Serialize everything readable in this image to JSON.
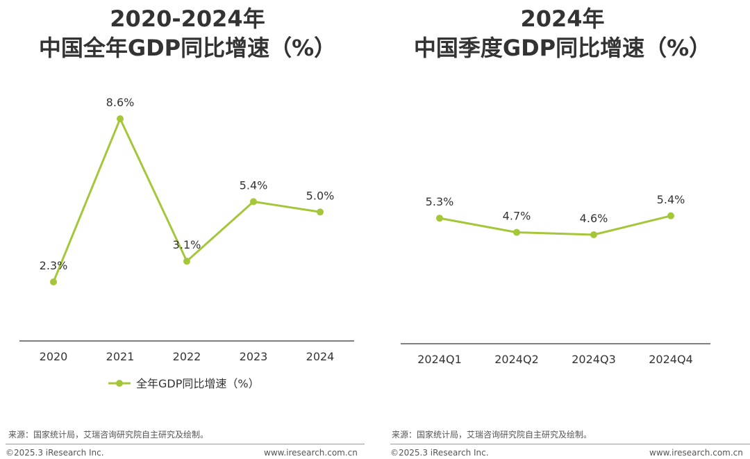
{
  "chart_data": [
    {
      "type": "line",
      "title": "2020-2024年\n中国全年GDP同比增速（%）",
      "categories": [
        "2020",
        "2021",
        "2022",
        "2023",
        "2024"
      ],
      "series": [
        {
          "name": "全年GDP同比增速（%）",
          "values": [
            2.3,
            8.6,
            3.1,
            5.4,
            5.0
          ]
        }
      ],
      "data_labels": [
        "2.3%",
        "8.6%",
        "3.1%",
        "5.4%",
        "5.0%"
      ],
      "legend": "bottom",
      "grid": false,
      "color": "#a4c639"
    },
    {
      "type": "line",
      "title": "2024年\n中国季度GDP同比增速（%）",
      "categories": [
        "2024Q1",
        "2024Q2",
        "2024Q3",
        "2024Q4"
      ],
      "series": [
        {
          "values": [
            5.3,
            4.7,
            4.6,
            5.4
          ]
        }
      ],
      "data_labels": [
        "5.3%",
        "4.7%",
        "4.6%",
        "5.4%"
      ],
      "grid": false,
      "color": "#a4c639"
    }
  ],
  "left": {
    "title_line1": "2020-2024年",
    "title_line2": "中国全年GDP同比增速（%）",
    "legend_label": "全年GDP同比增速（%）",
    "source": "来源：国家统计局，艾瑞咨询研究院自主研究及绘制。",
    "copyright": "©2025.3 iResearch Inc.",
    "website": "www.iresearch.com.cn"
  },
  "right": {
    "title_line1": "2024年",
    "title_line2": "中国季度GDP同比增速（%）",
    "source": "来源：国家统计局，艾瑞咨询研究院自主研究及绘制。",
    "copyright": "©2025.3 iResearch Inc.",
    "website": "www.iresearch.com.cn"
  }
}
